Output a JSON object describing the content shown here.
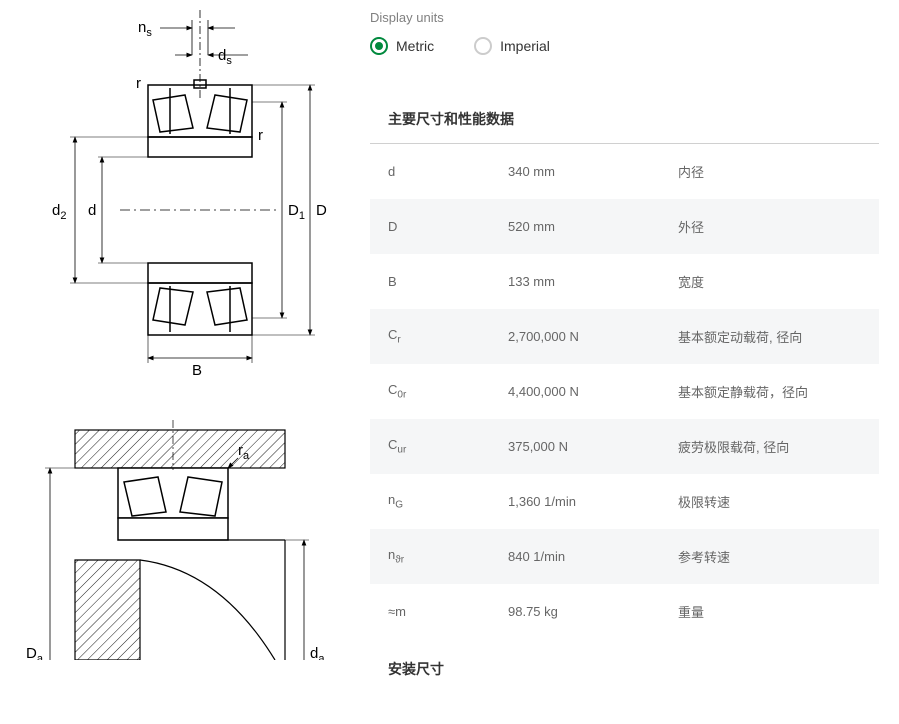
{
  "units": {
    "label": "Display units",
    "metric": "Metric",
    "imperial": "Imperial",
    "selected": "metric"
  },
  "section1_title": "主要尺寸和性能数据",
  "section2_title": "安装尺寸",
  "rows": [
    {
      "sym": "d",
      "sub": "",
      "val": "340 mm",
      "desc": "内径"
    },
    {
      "sym": "D",
      "sub": "",
      "val": "520 mm",
      "desc": "外径"
    },
    {
      "sym": "B",
      "sub": "",
      "val": "133 mm",
      "desc": "宽度"
    },
    {
      "sym": "C",
      "sub": "r",
      "val": "2,700,000 N",
      "desc": "基本额定动载荷, 径向"
    },
    {
      "sym": "C",
      "sub": "0r",
      "val": "4,400,000 N",
      "desc": "基本额定静载荷，径向"
    },
    {
      "sym": "C",
      "sub": "ur",
      "val": "375,000 N",
      "desc": "疲劳极限载荷, 径向"
    },
    {
      "sym": "n",
      "sub": "G",
      "val": "1,360 1/min",
      "desc": "极限转速"
    },
    {
      "sym": "n",
      "sub": "ϑr",
      "val": "840 1/min",
      "desc": "参考转速"
    },
    {
      "sym": "≈m",
      "sub": "",
      "val": "98.75 kg",
      "desc": "重量"
    }
  ],
  "diagram1_labels": {
    "ns": "n",
    "ns_sub": "s",
    "ds": "d",
    "ds_sub": "s",
    "r1": "r",
    "r2": "r",
    "d2": "d",
    "d2_sub": "2",
    "d": "d",
    "D1": "D",
    "D1_sub": "1",
    "D": "D",
    "B": "B"
  },
  "diagram2_labels": {
    "ra": "r",
    "ra_sub": "a",
    "Da": "D",
    "Da_sub": "a",
    "da": "d",
    "da_sub": "a"
  },
  "colors": {
    "accent": "#00893d",
    "line": "#000000",
    "hatch": "#000000",
    "bg_alt": "#f5f6f7",
    "text_muted": "#808080",
    "divider": "#d0d0d0"
  }
}
